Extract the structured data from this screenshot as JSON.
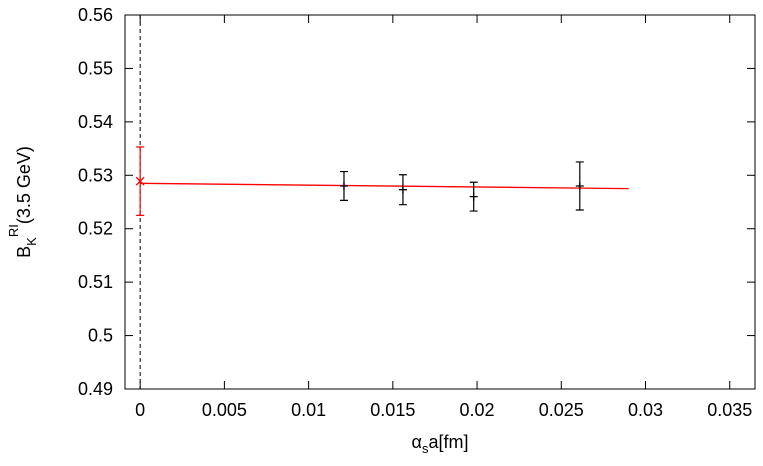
{
  "chart_data": {
    "type": "scatter",
    "xlabel": {
      "base": "α",
      "sub": "s",
      "rest": "a[fm]"
    },
    "ylabel": {
      "base": "B",
      "sub": "K",
      "sup": "RI",
      "rest": "(3.5 GeV)"
    },
    "xlim": [
      -0.0009,
      0.0365
    ],
    "ylim": [
      0.49,
      0.56
    ],
    "xticks": [
      0,
      0.005,
      0.01,
      0.015,
      0.02,
      0.025,
      0.03,
      0.035
    ],
    "yticks": [
      0.49,
      0.5,
      0.51,
      0.52,
      0.53,
      0.54,
      0.55,
      0.56
    ],
    "vline": 0,
    "series": [
      {
        "color": "#000000",
        "marker": "plus",
        "x": [
          0.0121,
          0.0156,
          0.0198,
          0.0261
        ],
        "values": [
          0.528,
          0.5273,
          0.526,
          0.528
        ],
        "errors": [
          0.0027,
          0.0028,
          0.0027,
          0.0045
        ]
      },
      {
        "color": "#ff0000",
        "marker": "cross",
        "x": [
          0
        ],
        "values": [
          0.5289
        ],
        "errors": [
          0.0064
        ]
      }
    ],
    "fit": {
      "color": "#ff0000",
      "x": [
        0,
        0.029
      ],
      "values": [
        0.5285,
        0.5275
      ]
    }
  }
}
